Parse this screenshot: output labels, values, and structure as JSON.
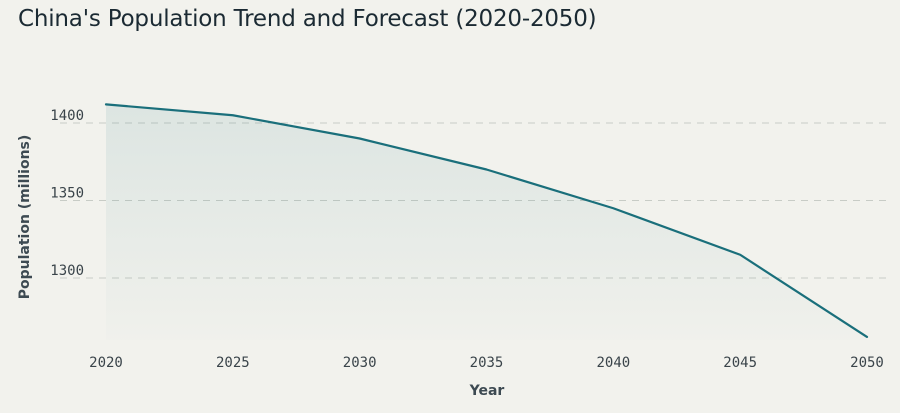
{
  "chart_data": {
    "type": "area",
    "title": "China's Population Trend and Forecast (2020-2050)",
    "xlabel": "Year",
    "ylabel": "Population (millions)",
    "x": [
      2020,
      2025,
      2030,
      2035,
      2040,
      2045,
      2050
    ],
    "series": [
      {
        "values": [
          1412,
          1405,
          1390,
          1370,
          1345,
          1315,
          1262
        ]
      }
    ],
    "xticks": [
      "2020",
      "2025",
      "2030",
      "2035",
      "2040",
      "2045",
      "2050"
    ],
    "yticks": [
      "1300",
      "1350",
      "1400"
    ],
    "ylim": [
      1250,
      1450
    ],
    "grid": true,
    "legend": "none",
    "colors": {
      "line": "#1a6f7b",
      "fill": "#1a6f7b",
      "grid": "#c8ccc6",
      "background": "#f2f2ed"
    }
  }
}
